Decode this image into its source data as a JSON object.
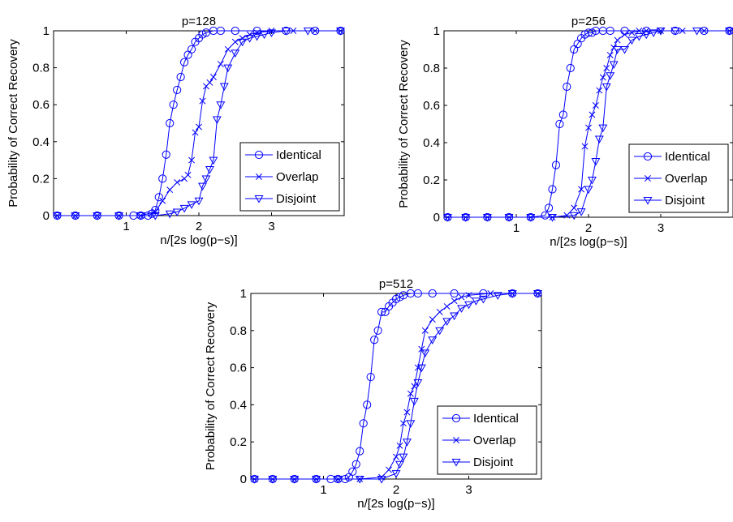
{
  "chart_data": [
    {
      "type": "line",
      "title": "p=128",
      "xlabel": "n/[2s log(p−s)]",
      "ylabel": "Probability of Correct Recovery",
      "xlim": [
        0,
        4
      ],
      "ylim": [
        0,
        1
      ],
      "xticks": [
        1,
        2,
        3
      ],
      "xtick_labels": [
        "1",
        "2",
        "3"
      ],
      "yticks": [
        0,
        0.2,
        0.4,
        0.6,
        0.8,
        1
      ],
      "ytick_labels": [
        "0",
        "0.2",
        "0.4",
        "0.6",
        "0.8",
        "1"
      ],
      "grid": false,
      "legend_position": "bottom-right",
      "series": [
        {
          "name": "Identical",
          "marker": "circle",
          "x": [
            0.05,
            0.3,
            0.6,
            0.9,
            1.1,
            1.2,
            1.3,
            1.35,
            1.4,
            1.45,
            1.5,
            1.55,
            1.6,
            1.65,
            1.7,
            1.75,
            1.8,
            1.85,
            1.9,
            1.95,
            2.0,
            2.05,
            2.1,
            2.2,
            2.3,
            2.5,
            2.8,
            3.2,
            3.6,
            3.95
          ],
          "y": [
            0,
            0,
            0,
            0,
            0,
            0,
            0,
            0.01,
            0.03,
            0.1,
            0.2,
            0.33,
            0.5,
            0.6,
            0.68,
            0.75,
            0.83,
            0.87,
            0.9,
            0.94,
            0.96,
            0.98,
            0.99,
            1,
            1,
            1,
            1,
            1,
            1,
            1
          ]
        },
        {
          "name": "Overlap",
          "marker": "x",
          "x": [
            0.05,
            0.3,
            0.6,
            0.9,
            1.2,
            1.4,
            1.5,
            1.6,
            1.7,
            1.8,
            1.85,
            1.9,
            1.95,
            2.0,
            2.05,
            2.1,
            2.15,
            2.2,
            2.3,
            2.4,
            2.5,
            2.6,
            2.7,
            2.8,
            3.0,
            3.3,
            3.6,
            3.95
          ],
          "y": [
            0,
            0,
            0,
            0,
            0,
            0.02,
            0.08,
            0.14,
            0.18,
            0.2,
            0.22,
            0.3,
            0.45,
            0.48,
            0.62,
            0.7,
            0.72,
            0.75,
            0.82,
            0.9,
            0.94,
            0.96,
            0.98,
            0.99,
            1,
            1,
            1,
            1
          ]
        },
        {
          "name": "Disjoint",
          "marker": "triangle-down",
          "x": [
            0.05,
            0.3,
            0.6,
            0.9,
            1.2,
            1.4,
            1.6,
            1.7,
            1.8,
            1.9,
            2.0,
            2.05,
            2.1,
            2.15,
            2.2,
            2.25,
            2.3,
            2.35,
            2.4,
            2.5,
            2.6,
            2.7,
            2.8,
            2.9,
            3.0,
            3.2,
            3.5,
            3.95
          ],
          "y": [
            0,
            0,
            0,
            0,
            0,
            0,
            0.01,
            0.02,
            0.04,
            0.06,
            0.08,
            0.16,
            0.2,
            0.25,
            0.3,
            0.52,
            0.6,
            0.7,
            0.8,
            0.88,
            0.94,
            0.96,
            0.97,
            0.98,
            0.99,
            1,
            1,
            1
          ]
        }
      ]
    },
    {
      "type": "line",
      "title": "p=256",
      "xlabel": "n/[2s log(p−s)]",
      "ylabel": "Probability of Correct Recovery",
      "xlim": [
        0,
        4
      ],
      "ylim": [
        0,
        1
      ],
      "xticks": [
        1,
        2,
        3
      ],
      "xtick_labels": [
        "1",
        "2",
        "3"
      ],
      "yticks": [
        0,
        0.2,
        0.4,
        0.6,
        0.8,
        1
      ],
      "ytick_labels": [
        "0",
        "0.2",
        "0.4",
        "0.6",
        "0.8",
        "1"
      ],
      "grid": false,
      "legend_position": "bottom-right",
      "series": [
        {
          "name": "Identical",
          "marker": "circle",
          "x": [
            0.05,
            0.3,
            0.6,
            0.9,
            1.2,
            1.4,
            1.45,
            1.5,
            1.55,
            1.6,
            1.65,
            1.7,
            1.75,
            1.8,
            1.85,
            1.9,
            1.95,
            2.0,
            2.05,
            2.1,
            2.2,
            2.3,
            2.5,
            2.8,
            3.2,
            3.6,
            3.95
          ],
          "y": [
            0,
            0,
            0,
            0,
            0,
            0.01,
            0.05,
            0.15,
            0.28,
            0.5,
            0.55,
            0.7,
            0.8,
            0.9,
            0.93,
            0.96,
            0.98,
            0.99,
            0.99,
            1,
            1,
            1,
            1,
            1,
            1,
            1,
            1
          ]
        },
        {
          "name": "Overlap",
          "marker": "x",
          "x": [
            0.05,
            0.3,
            0.6,
            0.9,
            1.2,
            1.5,
            1.7,
            1.8,
            1.9,
            1.95,
            2.0,
            2.05,
            2.1,
            2.15,
            2.2,
            2.25,
            2.3,
            2.35,
            2.4,
            2.5,
            2.6,
            2.7,
            2.8,
            3.0,
            3.3,
            3.6,
            3.95
          ],
          "y": [
            0,
            0,
            0,
            0,
            0,
            0,
            0.01,
            0.05,
            0.15,
            0.38,
            0.48,
            0.55,
            0.6,
            0.68,
            0.75,
            0.8,
            0.87,
            0.91,
            0.95,
            0.98,
            0.99,
            1,
            1,
            1,
            1,
            1,
            1
          ]
        },
        {
          "name": "Disjoint",
          "marker": "triangle-down",
          "x": [
            0.05,
            0.3,
            0.6,
            0.9,
            1.2,
            1.5,
            1.8,
            1.9,
            2.0,
            2.05,
            2.1,
            2.15,
            2.2,
            2.25,
            2.3,
            2.35,
            2.4,
            2.5,
            2.6,
            2.7,
            2.8,
            2.9,
            3.0,
            3.2,
            3.5,
            3.95
          ],
          "y": [
            0,
            0,
            0,
            0,
            0,
            0,
            0.01,
            0.03,
            0.15,
            0.2,
            0.3,
            0.42,
            0.48,
            0.7,
            0.76,
            0.82,
            0.9,
            0.9,
            0.95,
            0.97,
            0.98,
            0.99,
            1,
            1,
            1,
            1
          ]
        }
      ]
    },
    {
      "type": "line",
      "title": "p=512",
      "xlabel": "n/[2s log(p−s)]",
      "ylabel": "Probability of Correct Recovery",
      "xlim": [
        0,
        4
      ],
      "ylim": [
        0,
        1
      ],
      "xticks": [
        1,
        2,
        3
      ],
      "xtick_labels": [
        "1",
        "2",
        "3"
      ],
      "yticks": [
        0,
        0.2,
        0.4,
        0.6,
        0.8,
        1
      ],
      "ytick_labels": [
        "0",
        "0.2",
        "0.4",
        "0.6",
        "0.8",
        "1"
      ],
      "grid": false,
      "legend_position": "bottom-right",
      "series": [
        {
          "name": "Identical",
          "marker": "circle",
          "x": [
            0.05,
            0.3,
            0.6,
            0.9,
            1.1,
            1.2,
            1.3,
            1.35,
            1.4,
            1.45,
            1.5,
            1.55,
            1.6,
            1.65,
            1.7,
            1.75,
            1.8,
            1.85,
            1.9,
            1.95,
            2.0,
            2.05,
            2.1,
            2.2,
            2.3,
            2.5,
            2.8,
            3.2,
            3.6,
            3.95
          ],
          "y": [
            0,
            0,
            0,
            0,
            0,
            0,
            0,
            0.01,
            0.04,
            0.08,
            0.15,
            0.3,
            0.4,
            0.55,
            0.75,
            0.8,
            0.9,
            0.9,
            0.93,
            0.95,
            0.97,
            0.98,
            0.99,
            1,
            1,
            1,
            1,
            1,
            1,
            1
          ]
        },
        {
          "name": "Overlap",
          "marker": "x",
          "x": [
            0.05,
            0.3,
            0.6,
            0.9,
            1.2,
            1.5,
            1.8,
            1.9,
            2.0,
            2.05,
            2.1,
            2.15,
            2.2,
            2.25,
            2.3,
            2.35,
            2.4,
            2.5,
            2.6,
            2.7,
            2.8,
            2.9,
            3.0,
            3.3,
            3.6,
            3.95
          ],
          "y": [
            0,
            0,
            0,
            0,
            0,
            0,
            0.01,
            0.05,
            0.12,
            0.18,
            0.3,
            0.36,
            0.46,
            0.5,
            0.6,
            0.7,
            0.8,
            0.86,
            0.9,
            0.93,
            0.96,
            0.98,
            0.99,
            1,
            1,
            1
          ]
        },
        {
          "name": "Disjoint",
          "marker": "triangle-down",
          "x": [
            0.05,
            0.3,
            0.6,
            0.9,
            1.2,
            1.5,
            1.8,
            2.0,
            2.05,
            2.1,
            2.15,
            2.2,
            2.25,
            2.3,
            2.35,
            2.4,
            2.5,
            2.6,
            2.7,
            2.8,
            2.9,
            3.0,
            3.1,
            3.2,
            3.4,
            3.6,
            3.95
          ],
          "y": [
            0,
            0,
            0,
            0,
            0,
            0,
            0,
            0.03,
            0.08,
            0.12,
            0.2,
            0.3,
            0.42,
            0.52,
            0.6,
            0.68,
            0.75,
            0.8,
            0.85,
            0.88,
            0.92,
            0.94,
            0.96,
            0.97,
            0.99,
            1,
            1
          ]
        }
      ]
    }
  ],
  "colors": {
    "series_line": "#0000ff",
    "axes": "#000000",
    "background": "#ffffff"
  }
}
